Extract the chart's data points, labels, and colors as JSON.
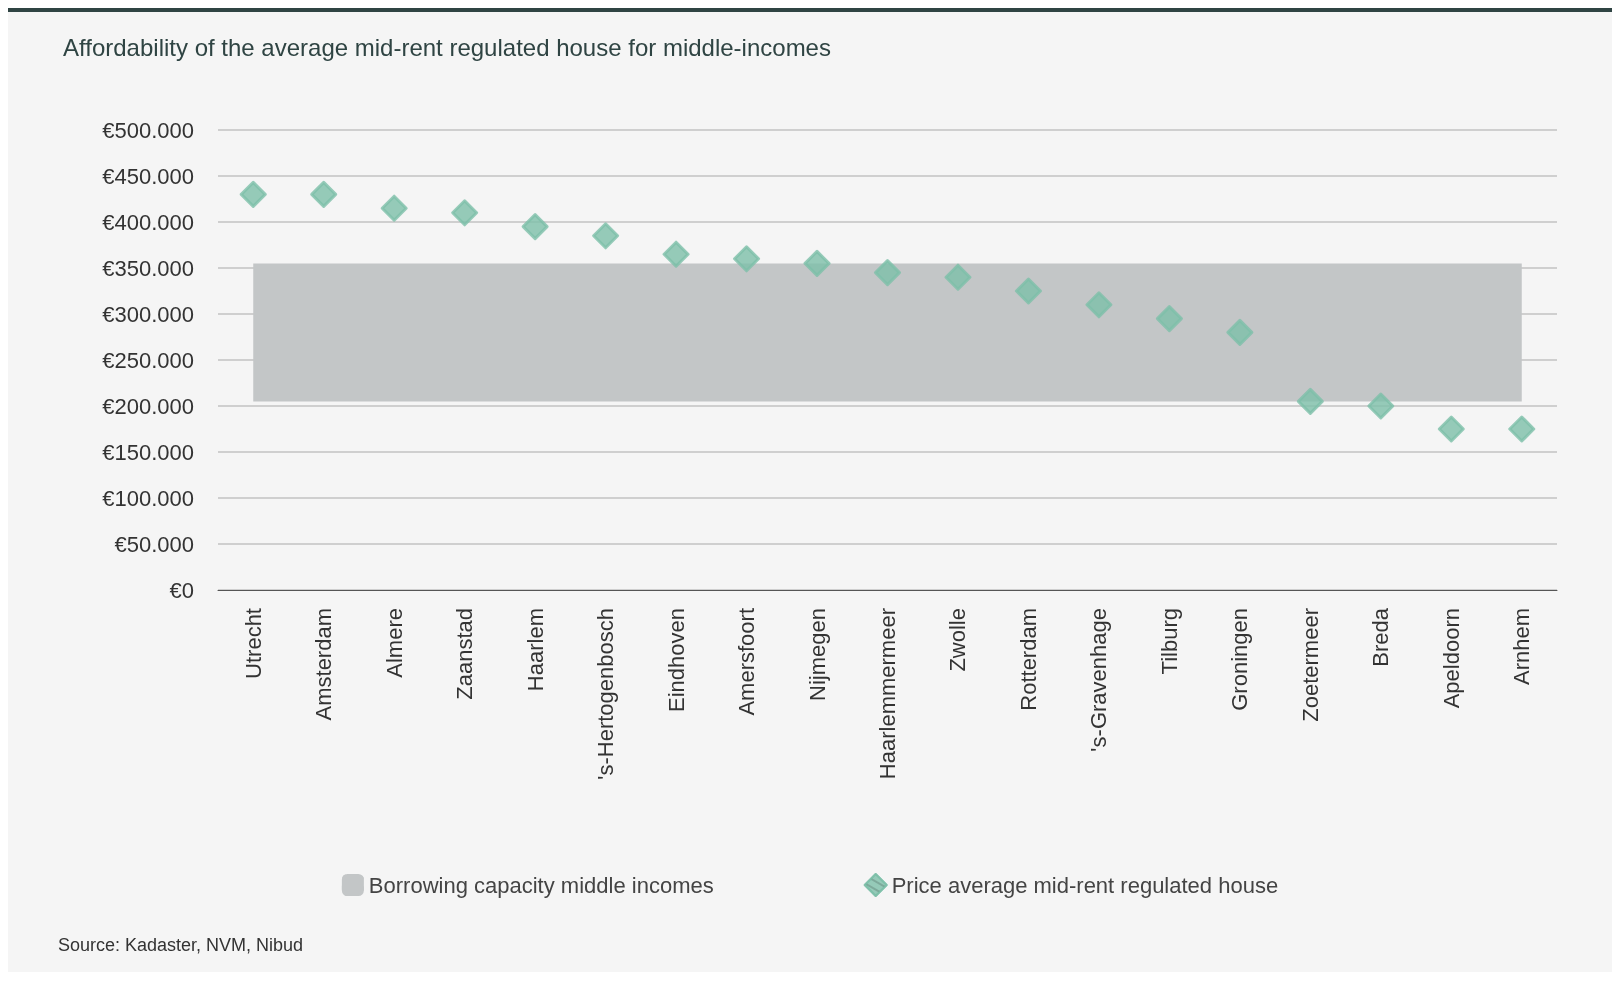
{
  "chart_data": {
    "type": "scatter",
    "title": "Affordability of the average mid-rent regulated house for middle-incomes",
    "categories": [
      "Utrecht",
      "Amsterdam",
      "Almere",
      "Zaanstad",
      "Haarlem",
      "'s-Hertogenbosch",
      "Eindhoven",
      "Amersfoort",
      "Nijmegen",
      "Haarlemmermeer",
      "Zwolle",
      "Rotterdam",
      "'s-Gravenhage",
      "Tilburg",
      "Groningen",
      "Zoetermeer",
      "Breda",
      "Apeldoorn",
      "Arnhem"
    ],
    "series": [
      {
        "name": "Price average mid-rent regulated house",
        "color": "#7dbfa9",
        "values": [
          430000,
          430000,
          415000,
          410000,
          395000,
          385000,
          365000,
          360000,
          355000,
          345000,
          340000,
          325000,
          310000,
          295000,
          280000,
          205000,
          200000,
          175000,
          175000
        ]
      }
    ],
    "bands": [
      {
        "axis": "y",
        "from": 205000,
        "to": 355000,
        "label": "Borrowing capacity middle incomes",
        "color": "#c3c6c7"
      }
    ],
    "ylim": [
      0,
      500000
    ],
    "yticks": [
      {
        "value": 0,
        "label": "€0"
      },
      {
        "value": 50000,
        "label": "€50.000"
      },
      {
        "value": 100000,
        "label": "€100.000"
      },
      {
        "value": 150000,
        "label": "€150.000"
      },
      {
        "value": 200000,
        "label": "€200.000"
      },
      {
        "value": 250000,
        "label": "€250.000"
      },
      {
        "value": 300000,
        "label": "€300.000"
      },
      {
        "value": 350000,
        "label": "€350.000"
      },
      {
        "value": 400000,
        "label": "€400.000"
      },
      {
        "value": 450000,
        "label": "€450.000"
      },
      {
        "value": 500000,
        "label": "€500.000"
      }
    ],
    "grid": "y",
    "legend": "bottom",
    "marker": "diamond",
    "annotations": [
      "Source: Kadaster, NVM, Nibud"
    ]
  }
}
